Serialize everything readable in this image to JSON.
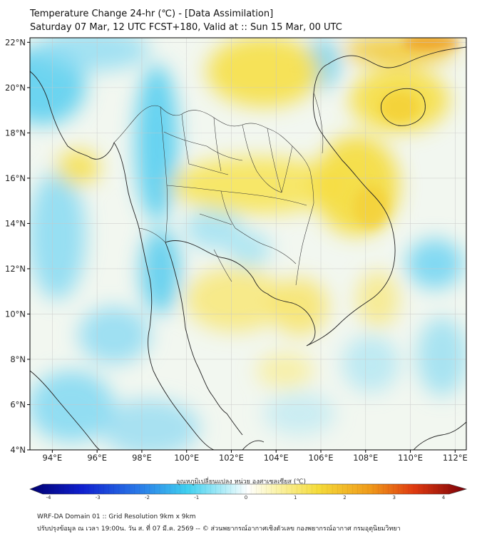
{
  "title_line1": "Temperature Change 24-hr (℃) - [Data Assimilation]",
  "title_line2": "Saturday 07 Mar, 12 UTC FCST+180, Valid at :: Sun 15 Mar, 00 UTC",
  "lat_labels": [
    "22°N",
    "20°N",
    "18°N",
    "16°N",
    "14°N",
    "12°N",
    "10°N",
    "8°N",
    "6°N",
    "4°N"
  ],
  "lon_labels": [
    "94°E",
    "96°E",
    "98°E",
    "100°E",
    "102°E",
    "104°E",
    "106°E",
    "108°E",
    "110°E",
    "112°E"
  ],
  "colorbar": {
    "label": "อุณหภูมิเปลี่ยนแปลง หน่วย องศาเซลเซียส (℃)",
    "ticks": [
      "-4",
      "-3",
      "-2",
      "-1",
      "0",
      "1",
      "2",
      "3",
      "4"
    ]
  },
  "footer_line1": "WRF-DA Domain 01 :: Grid Resolution 9km x 9km",
  "footer_line2": "ปรับปรุงข้อมูล ณ เวลา 19:00น. วัน ส. ที่ 07 มี.ค. 2569 -- © ส่วนพยากรณ์อากาศเชิงตัวเลข กองพยากรณ์อากาศ กรมอุตุนิยมวิทยา",
  "colors": {
    "cooling": "#3fd0f0",
    "warming": "#f5dc3a",
    "neutral": "#f4f8f2",
    "strong_warm": "#f0a020"
  }
}
